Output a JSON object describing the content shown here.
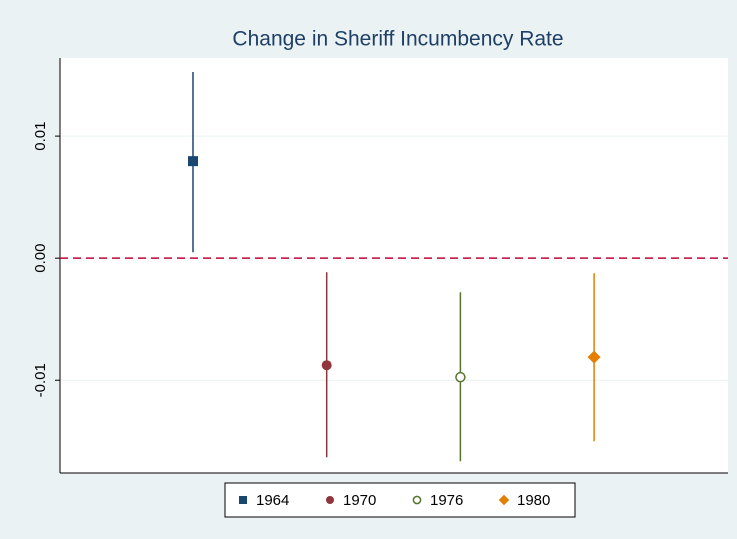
{
  "chart_data": {
    "type": "coefplot",
    "title": "Change in Sheriff Incumbency Rate",
    "series": [
      {
        "name": "1964",
        "color": "#1a476f",
        "marker": "square",
        "values": [
          0.00795
        ],
        "ci_low": [
          0.00049
        ],
        "ci_high": [
          0.01525
        ]
      },
      {
        "name": "1970",
        "color": "#90353b",
        "marker": "circle",
        "values": [
          -0.00877
        ],
        "ci_low": [
          -0.01631
        ],
        "ci_high": [
          -0.00115
        ]
      },
      {
        "name": "1976",
        "color": "#55752f",
        "marker": "hollow-circle",
        "values": [
          -0.00975
        ],
        "ci_low": [
          -0.01664
        ],
        "ci_high": [
          -0.00279
        ]
      },
      {
        "name": "1980",
        "color": "#e37e00",
        "marker": "diamond",
        "values": [
          -0.00811
        ],
        "ci_low": [
          -0.015
        ],
        "ci_high": [
          -0.00123
        ]
      }
    ],
    "ylim": [
      -0.0176,
      0.0164
    ],
    "yticks": [
      -0.01,
      {
        "value": 0,
        "label": "0.00"
      },
      0.01
    ],
    "grid": true,
    "reference_line": {
      "value": 0,
      "color": "#c10534",
      "style": "dashed"
    },
    "legend": "bottom"
  }
}
